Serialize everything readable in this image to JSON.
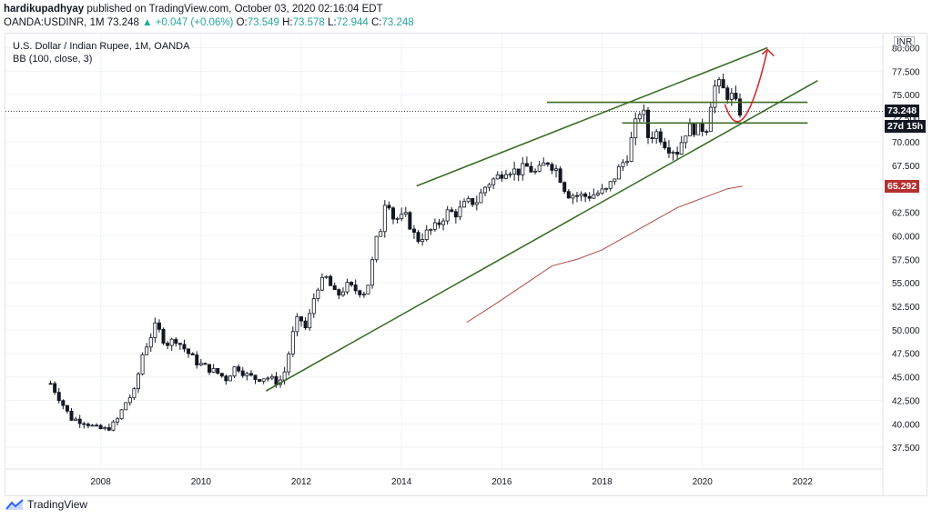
{
  "header": {
    "author": "hardikupadhyay",
    "published_text": "published on TradingView.com, October 03, 2020 02:16:04 EDT",
    "symbol": "OANDA:USDINR, 1M",
    "last": "73.248",
    "change": "▲ +0.047 (+0.06%)",
    "open_label": "O:",
    "open": "73.549",
    "high_label": "H:",
    "high": "73.578",
    "low_label": "L:",
    "low": "72.944",
    "close_label": "C:",
    "close": "73.248"
  },
  "legend": {
    "title": "U.S. Dollar / Indian Rupee, 1M, OANDA",
    "indicator": "BB (100, close, 3)"
  },
  "price_scale": {
    "currency": "INR",
    "last_price_badge": "73.248",
    "countdown_badge": "27d 15h",
    "bb_badge": "65.292"
  },
  "footer": {
    "brand": "TradingView"
  },
  "colors": {
    "up": "#26a69a",
    "candle": "#131722",
    "trendline": "#3c6e27",
    "bb": "#b44a45",
    "arrow": "#d32f2f",
    "bb_badge_bg": "#b5312f",
    "badge_bg": "#131722"
  },
  "chart_data": {
    "type": "candlestick",
    "title": "U.S. Dollar / Indian Rupee, 1M, OANDA",
    "y_ticks": [
      "37.500",
      "40.000",
      "42.500",
      "45.000",
      "47.500",
      "50.000",
      "52.500",
      "55.000",
      "57.500",
      "60.000",
      "62.500",
      "65.000",
      "67.500",
      "70.000",
      "72.500",
      "75.000",
      "77.500",
      "80.000"
    ],
    "x_ticks": [
      "2008",
      "2010",
      "2012",
      "2014",
      "2016",
      "2018",
      "2020",
      "2022"
    ],
    "ylim": [
      35.2,
      81.5
    ],
    "xlim": [
      2006.1,
      2023.6
    ],
    "price_path": [
      [
        2007.0,
        44.3
      ],
      [
        2007.2,
        42.5
      ],
      [
        2007.4,
        40.6
      ],
      [
        2007.7,
        40.2
      ],
      [
        2007.9,
        39.5
      ],
      [
        2008.1,
        39.4
      ],
      [
        2008.3,
        40.1
      ],
      [
        2008.5,
        42.3
      ],
      [
        2008.7,
        43.6
      ],
      [
        2008.8,
        47.0
      ],
      [
        2008.95,
        48.8
      ],
      [
        2009.1,
        50.5
      ],
      [
        2009.3,
        48.5
      ],
      [
        2009.5,
        49.0
      ],
      [
        2009.7,
        47.8
      ],
      [
        2009.9,
        46.6
      ],
      [
        2010.1,
        46.0
      ],
      [
        2010.3,
        45.5
      ],
      [
        2010.5,
        44.8
      ],
      [
        2010.7,
        46.2
      ],
      [
        2010.9,
        45.2
      ],
      [
        2011.1,
        44.8
      ],
      [
        2011.3,
        45.0
      ],
      [
        2011.5,
        44.5
      ],
      [
        2011.6,
        44.7
      ],
      [
        2011.7,
        46.0
      ],
      [
        2011.8,
        49.0
      ],
      [
        2011.95,
        51.5
      ],
      [
        2012.1,
        50.0
      ],
      [
        2012.3,
        54.5
      ],
      [
        2012.5,
        55.5
      ],
      [
        2012.7,
        53.5
      ],
      [
        2012.9,
        54.7
      ],
      [
        2013.1,
        54.2
      ],
      [
        2013.3,
        54.0
      ],
      [
        2013.5,
        59.5
      ],
      [
        2013.6,
        61.0
      ],
      [
        2013.7,
        65.0
      ],
      [
        2013.8,
        62.0
      ],
      [
        2013.95,
        61.8
      ],
      [
        2014.1,
        62.0
      ],
      [
        2014.3,
        59.5
      ],
      [
        2014.5,
        60.3
      ],
      [
        2014.7,
        61.0
      ],
      [
        2014.9,
        62.5
      ],
      [
        2015.1,
        62.4
      ],
      [
        2015.3,
        63.5
      ],
      [
        2015.5,
        63.7
      ],
      [
        2015.7,
        65.5
      ],
      [
        2015.9,
        66.2
      ],
      [
        2016.1,
        67.2
      ],
      [
        2016.3,
        66.8
      ],
      [
        2016.5,
        67.3
      ],
      [
        2016.7,
        66.6
      ],
      [
        2016.9,
        68.0
      ],
      [
        2017.1,
        67.0
      ],
      [
        2017.3,
        64.5
      ],
      [
        2017.5,
        64.3
      ],
      [
        2017.7,
        64.2
      ],
      [
        2017.9,
        64.5
      ],
      [
        2018.1,
        64.8
      ],
      [
        2018.3,
        66.8
      ],
      [
        2018.5,
        68.5
      ],
      [
        2018.7,
        72.5
      ],
      [
        2018.8,
        74.0
      ],
      [
        2018.9,
        70.5
      ],
      [
        2019.1,
        71.0
      ],
      [
        2019.3,
        69.5
      ],
      [
        2019.5,
        69.0
      ],
      [
        2019.7,
        71.5
      ],
      [
        2019.9,
        71.3
      ],
      [
        2020.1,
        71.6
      ],
      [
        2020.2,
        75.5
      ],
      [
        2020.3,
        76.2
      ],
      [
        2020.5,
        75.0
      ],
      [
        2020.6,
        74.8
      ],
      [
        2020.7,
        73.5
      ],
      [
        2020.75,
        73.25
      ]
    ],
    "bb_upper_visible": [
      [
        2015.3,
        50.8
      ],
      [
        2015.8,
        52.5
      ],
      [
        2016.5,
        55.0
      ],
      [
        2017.0,
        56.8
      ],
      [
        2017.5,
        57.5
      ],
      [
        2018.0,
        58.5
      ],
      [
        2018.5,
        60.0
      ],
      [
        2019.0,
        61.5
      ],
      [
        2019.5,
        63.0
      ],
      [
        2020.0,
        64.0
      ],
      [
        2020.5,
        65.0
      ],
      [
        2020.8,
        65.29
      ]
    ],
    "trendlines": [
      {
        "from": [
          2011.3,
          43.5
        ],
        "to": [
          2022.3,
          76.5
        ]
      },
      {
        "from": [
          2014.3,
          65.3
        ],
        "to": [
          2021.3,
          80.0
        ]
      },
      {
        "from": [
          2016.9,
          74.2
        ],
        "to": [
          2022.1,
          74.2
        ]
      },
      {
        "from": [
          2018.4,
          72.0
        ],
        "to": [
          2022.1,
          72.0
        ]
      }
    ],
    "forecast_arrow": {
      "from": [
        2020.45,
        74.0
      ],
      "via": [
        2020.8,
        70.5
      ],
      "to": [
        2021.3,
        79.8
      ]
    },
    "last_price": 73.248
  }
}
